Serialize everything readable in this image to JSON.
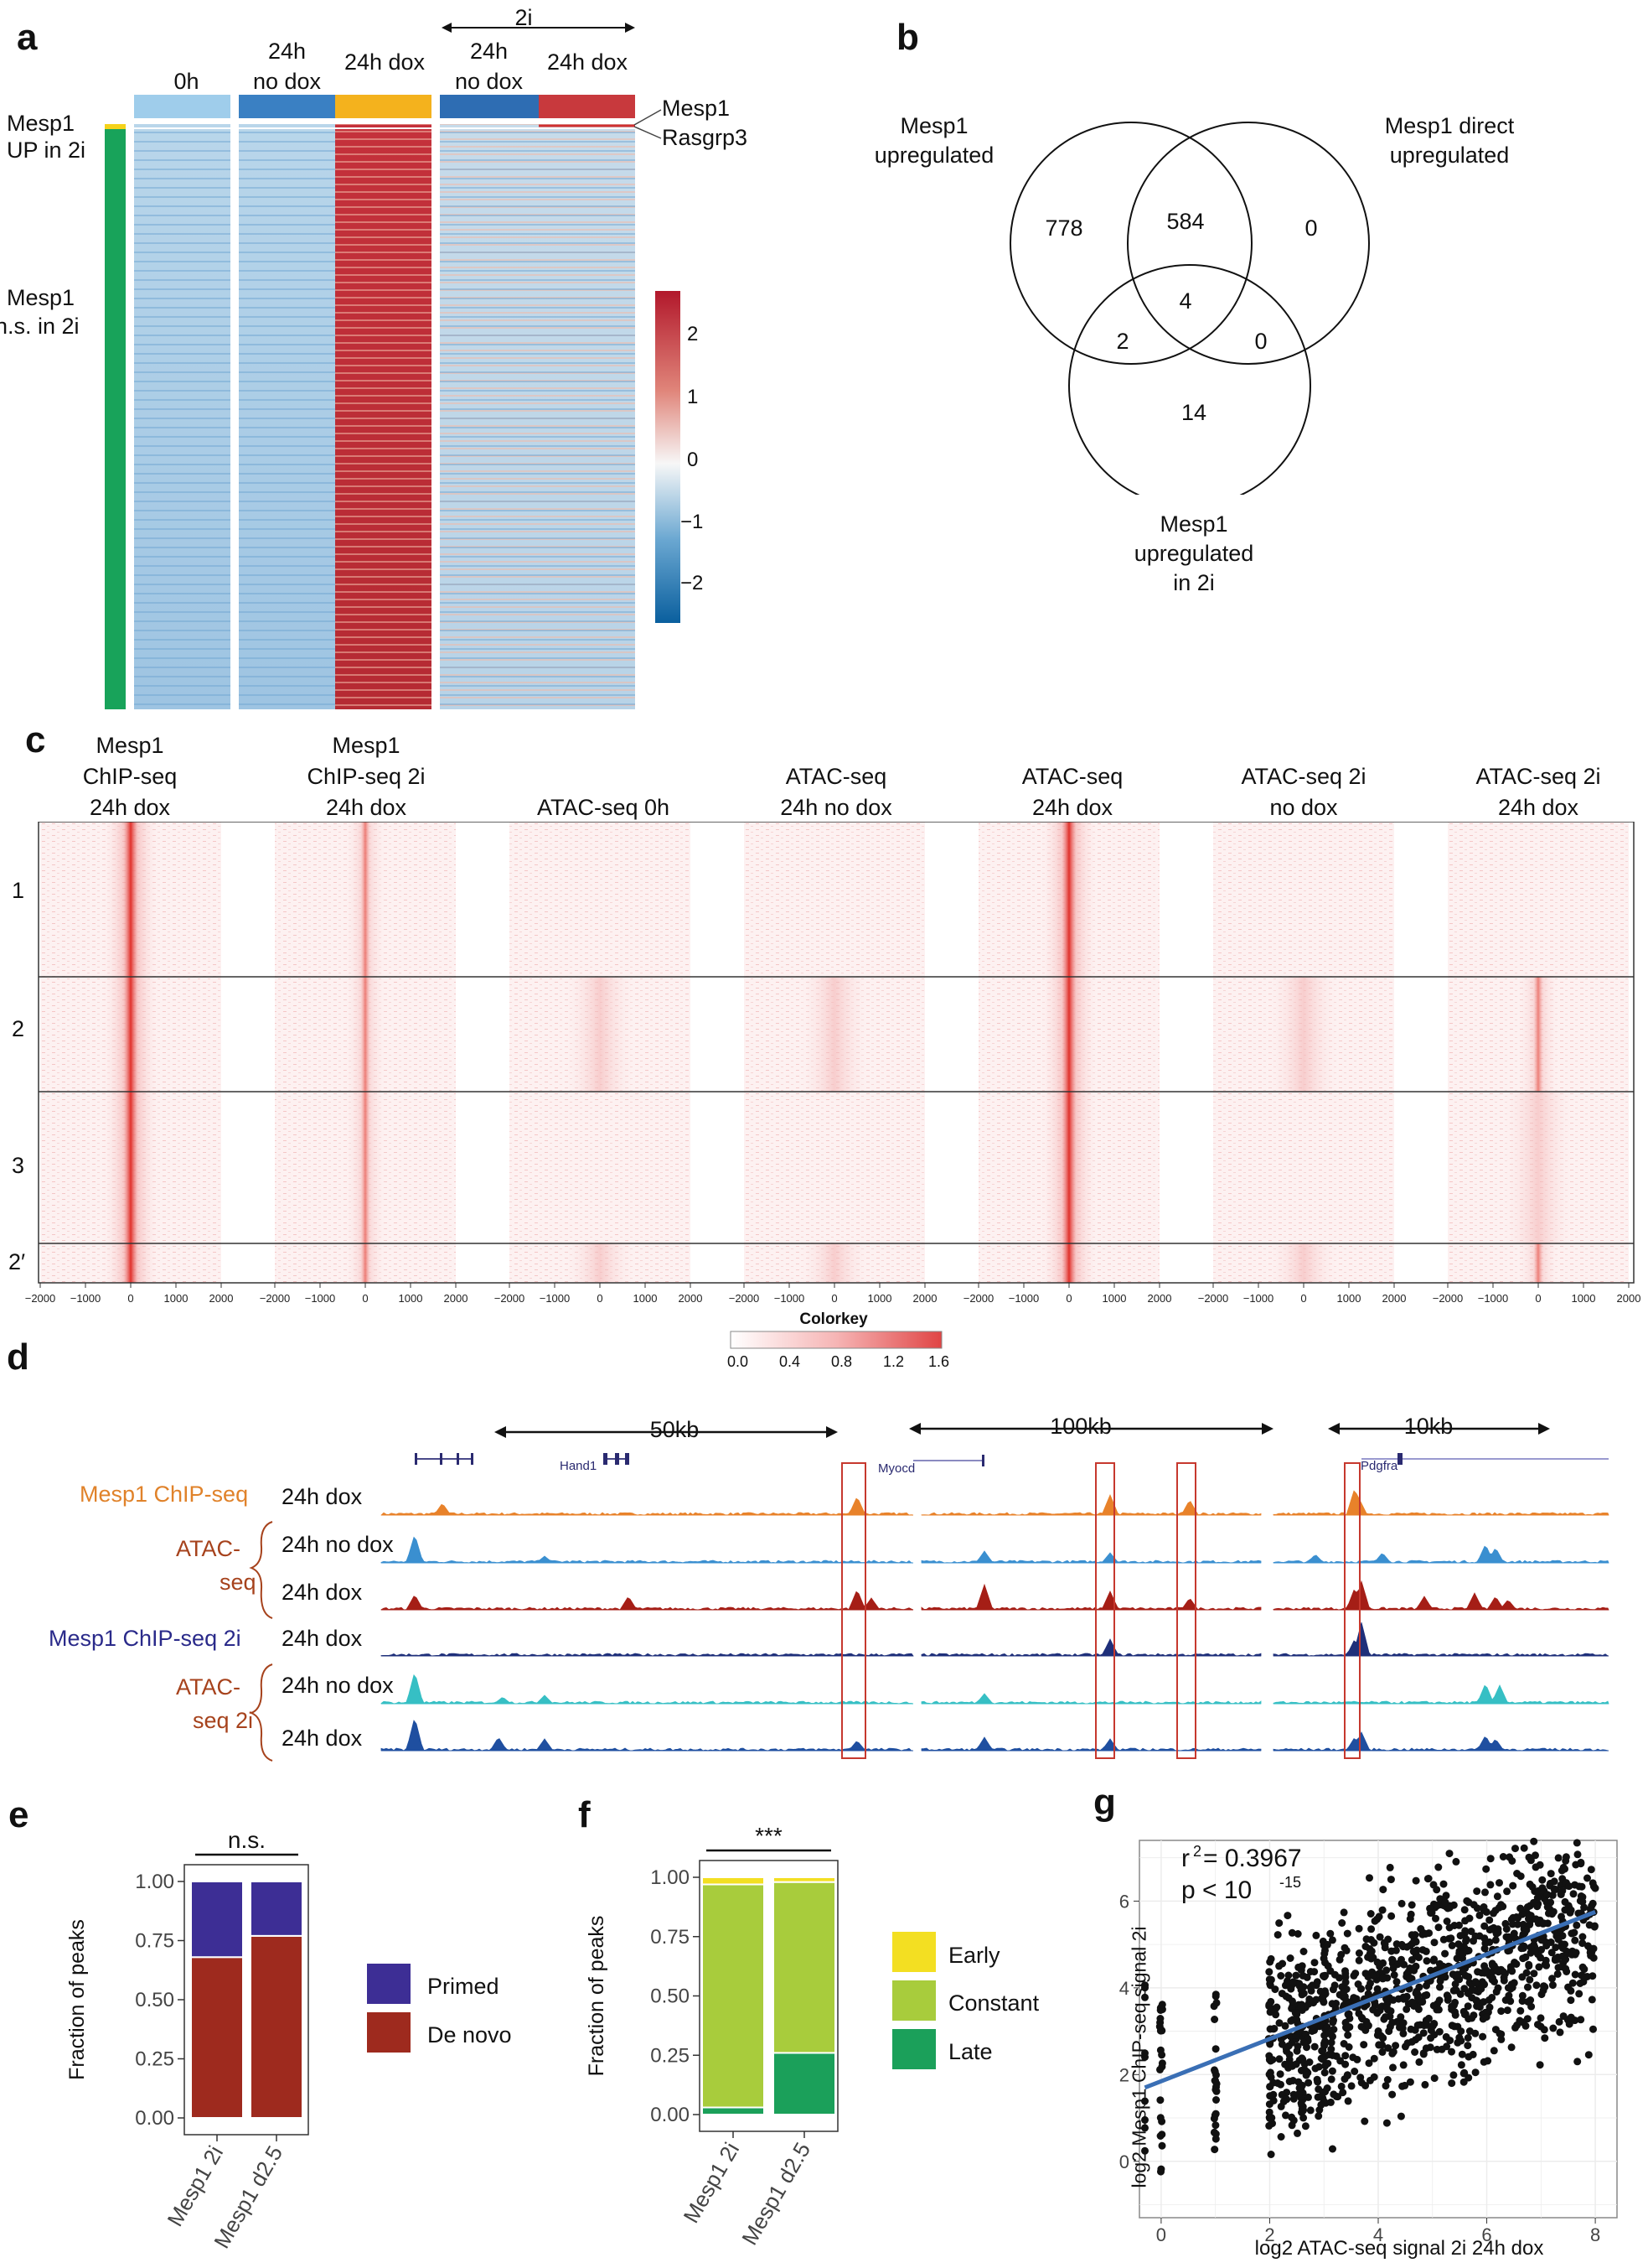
{
  "panels": {
    "a": "a",
    "b": "b",
    "c": "c",
    "d": "d",
    "e": "e",
    "f": "f",
    "g": "g"
  },
  "a": {
    "two_i_label": "2i",
    "col_labels": [
      {
        "line1": "",
        "line2": "0h"
      },
      {
        "line1": "24h",
        "line2": "no dox"
      },
      {
        "line1": "",
        "line2": "24h dox"
      },
      {
        "line1": "24h",
        "line2": "no dox"
      },
      {
        "line1": "",
        "line2": "24h dox"
      }
    ],
    "row_labels": {
      "up_line1": "Mesp1",
      "up_line2": "UP in 2i",
      "ns_line1": "Mesp1",
      "ns_line2": "n.s. in 2i"
    },
    "gene_labels": [
      "Mesp1",
      "Rasgrp3"
    ],
    "colorbar": {
      "ticks": [
        "2",
        "1",
        "0",
        "−1",
        "−2"
      ],
      "colors": [
        "#0a5f9e",
        "#6aa7d1",
        "#f7f7f7",
        "#e0857a",
        "#b2182b"
      ]
    }
  },
  "b": {
    "set_labels": {
      "s1_line1": "Mesp1",
      "s1_line2": "upregulated",
      "s2_line1": "Mesp1 direct",
      "s2_line2": "upregulated",
      "s3_line1": "Mesp1",
      "s3_line2": "upregulated",
      "s3_line3": "in 2i"
    },
    "counts": {
      "only1": "778",
      "c12": "584",
      "only2": "0",
      "c123": "4",
      "c13": "2",
      "c23": "0",
      "only3": "14"
    }
  },
  "c": {
    "headers": [
      {
        "line1": "Mesp1",
        "line2": "ChIP-seq",
        "line3": "24h dox"
      },
      {
        "line1": "Mesp1",
        "line2": "ChIP-seq 2i",
        "line3": "24h dox"
      },
      {
        "line1": "",
        "line2": "",
        "line3": "ATAC-seq 0h"
      },
      {
        "line1": "",
        "line2": "ATAC-seq",
        "line3": "24h no dox"
      },
      {
        "line1": "",
        "line2": "ATAC-seq",
        "line3": "24h dox"
      },
      {
        "line1": "",
        "line2": "ATAC-seq 2i",
        "line3": "no dox"
      },
      {
        "line1": "",
        "line2": "ATAC-seq 2i",
        "line3": "24h dox"
      }
    ],
    "clusters": [
      "1",
      "2",
      "3",
      "2′"
    ],
    "x_ticks": [
      "−2000",
      "−1000",
      "0",
      "1000",
      "2000"
    ],
    "colorkey": {
      "title": "Colorkey",
      "ticks": [
        "0.0",
        "0.4",
        "0.8",
        "1.2",
        "1.6"
      ],
      "colors": [
        "#ffffff",
        "#f6b5b5",
        "#e04545"
      ]
    }
  },
  "d": {
    "scales": [
      "50kb",
      "100kb",
      "10kb"
    ],
    "genes": [
      "Hand1",
      "Myocd",
      "Pdgfra"
    ],
    "track_labels": [
      "Mesp1 ChIP-seq",
      "ATAC-",
      "seq",
      "Mesp1 ChIP-seq 2i",
      "ATAC-",
      "seq 2i"
    ],
    "conditions": [
      "24h dox",
      "24h no dox",
      "24h dox",
      "24h dox",
      "24h no dox",
      "24h dox"
    ],
    "track_colors": [
      "#e8822a",
      "#3a8fd0",
      "#a51e16",
      "#1e2f7a",
      "#36bfc4",
      "#1f4fa0"
    ]
  },
  "e": {
    "chart_data": {
      "type": "bar",
      "stacked": true,
      "categories": [
        "Mesp1 2i",
        "Mesp1 d2.5"
      ],
      "series": [
        {
          "name": "De novo",
          "values": [
            0.68,
            0.77
          ],
          "color": "#9e2a1e"
        },
        {
          "name": "Primed",
          "values": [
            0.32,
            0.23
          ],
          "color": "#3d2e95"
        }
      ],
      "ylabel": "Fraction of peaks",
      "ylim": [
        0,
        1
      ],
      "y_ticks": [
        "0.00",
        "0.25",
        "0.50",
        "0.75",
        "1.00"
      ],
      "annotation": "n.s.",
      "legend": [
        "Primed",
        "De novo"
      ]
    }
  },
  "f": {
    "chart_data": {
      "type": "bar",
      "stacked": true,
      "categories": [
        "Mesp1 2i",
        "Mesp1 d2.5"
      ],
      "series": [
        {
          "name": "Late",
          "values": [
            0.03,
            0.26
          ],
          "color": "#1ba05a"
        },
        {
          "name": "Constant",
          "values": [
            0.94,
            0.72
          ],
          "color": "#a8cc3c"
        },
        {
          "name": "Early",
          "values": [
            0.03,
            0.02
          ],
          "color": "#f3df22"
        }
      ],
      "ylabel": "Fraction of peaks",
      "ylim": [
        0,
        1
      ],
      "y_ticks": [
        "0.00",
        "0.25",
        "0.50",
        "0.75",
        "1.00"
      ],
      "annotation": "***",
      "legend": [
        "Early",
        "Constant",
        "Late"
      ]
    }
  },
  "g": {
    "chart_data": {
      "type": "scatter",
      "xlabel": "log2 ATAC-seq signal 2i 24h dox",
      "ylabel": "log2 Mesp1 ChIP-seq signal 2i",
      "xlim": [
        -0.4,
        8.4
      ],
      "ylim": [
        -1.3,
        7.4
      ],
      "x_ticks": [
        "0",
        "2",
        "4",
        "6",
        "8"
      ],
      "y_ticks": [
        "0",
        "2",
        "4",
        "6"
      ],
      "fit_line": {
        "x": [
          -0.3,
          8.0
        ],
        "y": [
          1.7,
          5.75
        ]
      },
      "point_color": "#111111",
      "line_color": "#3a6fb5",
      "approx_points": 1500
    },
    "stats": {
      "r2_label": "r",
      "r2_value": "= 0.3967",
      "p_label": "p < 10",
      "p_exp": "-15"
    }
  }
}
